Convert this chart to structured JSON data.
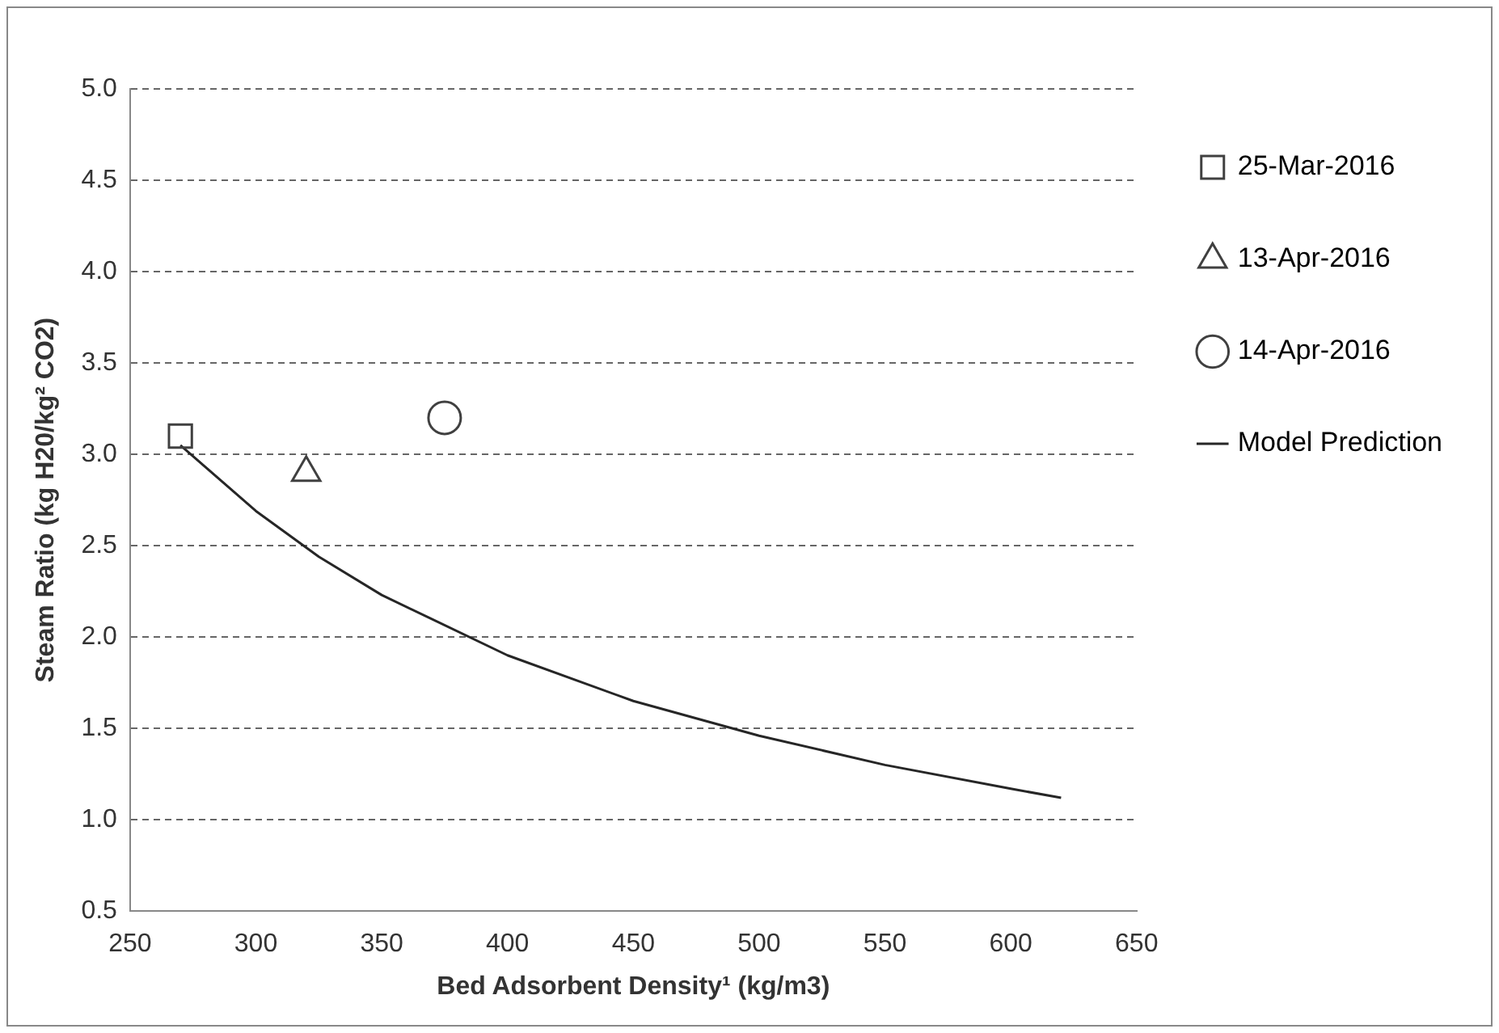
{
  "chart_data": {
    "type": "scatter",
    "xlabel": "Bed Adsorbent Density¹ (kg/m3)",
    "ylabel": "Steam Ratio (kg H20/kg² CO2)",
    "xlim": [
      250,
      650
    ],
    "xticks": [
      250,
      300,
      350,
      400,
      450,
      500,
      550,
      600,
      650
    ],
    "ylim": [
      0.5,
      5.0
    ],
    "yticks": [
      0.5,
      {
        "value": 1,
        "label": "1.0"
      },
      1.5,
      {
        "value": 2,
        "label": "2.0"
      },
      2.5,
      {
        "value": 3,
        "label": "3.0"
      },
      3.5,
      {
        "value": 4,
        "label": "4.0"
      },
      4.5,
      {
        "value": 5,
        "label": "5.0"
      }
    ],
    "grid": "y",
    "legend": "right",
    "series": [
      {
        "name": "25-Mar-2016",
        "color": "#404040",
        "marker": "square",
        "x": [
          270
        ],
        "values": [
          3.1
        ]
      },
      {
        "name": "13-Apr-2016",
        "color": "#404040",
        "marker": "triangle",
        "x": [
          320
        ],
        "values": [
          2.9
        ]
      },
      {
        "name": "14-Apr-2016",
        "color": "#404040",
        "marker": "circle",
        "x": [
          375
        ],
        "values": [
          3.2
        ]
      },
      {
        "name": "Model Prediction",
        "type": "line",
        "color": "#262626",
        "marker": "none",
        "x": [
          270,
          300,
          325,
          350,
          400,
          450,
          500,
          550,
          600,
          620
        ],
        "values": [
          3.05,
          2.69,
          2.44,
          2.23,
          1.9,
          1.65,
          1.46,
          1.3,
          1.17,
          1.12
        ]
      }
    ]
  }
}
